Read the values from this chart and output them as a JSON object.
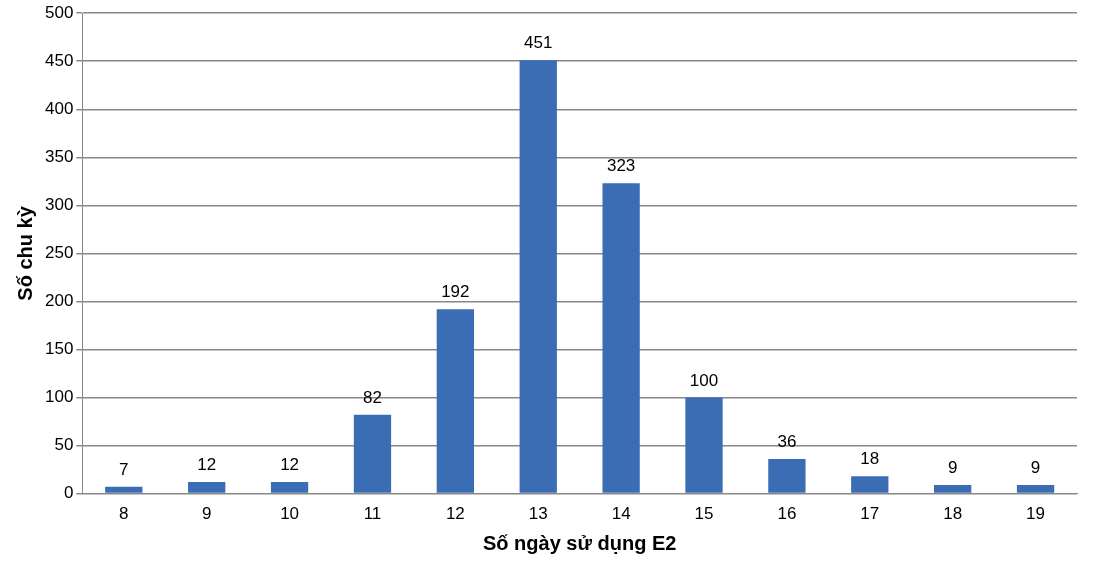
{
  "chart_data": {
    "type": "bar",
    "xlabel": "Số ngày sử dụng E2",
    "ylabel": "Số chu kỳ",
    "categories": [
      "8",
      "9",
      "10",
      "11",
      "12",
      "13",
      "14",
      "15",
      "16",
      "17",
      "18",
      "19"
    ],
    "values": [
      7,
      12,
      12,
      82,
      192,
      451,
      323,
      100,
      36,
      18,
      9,
      9
    ],
    "color": "#3b6db5",
    "ylim": [
      0,
      500
    ],
    "yticks": [
      0,
      50,
      100,
      150,
      200,
      250,
      300,
      350,
      400,
      450,
      500
    ],
    "grid": "y",
    "data_labels": true
  }
}
